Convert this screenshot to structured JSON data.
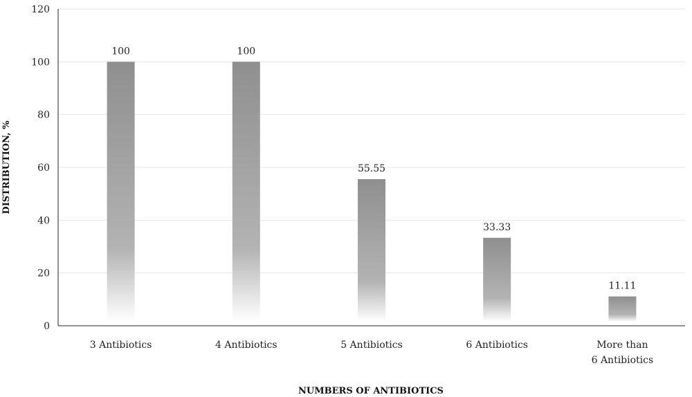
{
  "chart_data": {
    "type": "bar",
    "categories": [
      "3 Antibiotics",
      "4 Antibiotics",
      "5 Antibiotics",
      "6 Antibiotics",
      "More than 6 Antibiotics"
    ],
    "category_lines": [
      [
        "3 Antibiotics"
      ],
      [
        "4 Antibiotics"
      ],
      [
        "5 Antibiotics"
      ],
      [
        "6 Antibiotics"
      ],
      [
        "More than",
        "6 Antibiotics"
      ]
    ],
    "values": [
      100,
      100,
      55.55,
      33.33,
      11.11
    ],
    "data_labels": [
      "100",
      "100",
      "55.55",
      "33.33",
      "11.11"
    ],
    "xlabel": "NUMBERS OF ANTIBIOTICS",
    "ylabel": "DISTRIBUTION, %",
    "ylim": [
      0,
      120
    ],
    "yticks": [
      0,
      20,
      40,
      60,
      80,
      100,
      120
    ],
    "grid": true,
    "legend": "none",
    "bar_color_top": "#8f8f8f",
    "bar_color_bottom": "#ffffff"
  }
}
